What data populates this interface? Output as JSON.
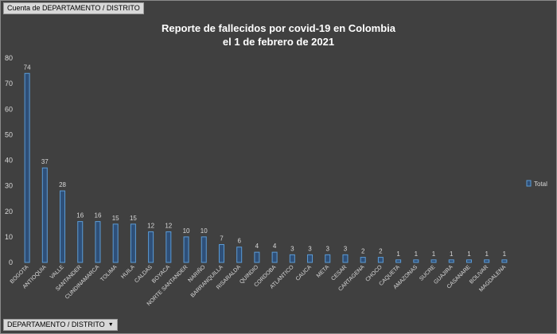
{
  "pivot": {
    "value_field": "Cuenta de DEPARTAMENTO / DISTRITO",
    "axis_field": "DEPARTAMENTO / DISTRITO"
  },
  "chart_data": {
    "type": "bar",
    "title_lines": [
      "Reporte de fallecidos por covid-19 en Colombia",
      "el 1 de febrero de 2021"
    ],
    "categories": [
      "BOGOTA",
      "ANTIOQUIA",
      "VALLE",
      "SANTANDER",
      "CUNDINAMARCA",
      "TOLIMA",
      "HUILA",
      "CALDAS",
      "BOYACA",
      "NORTE SANTANDER",
      "NARIÑO",
      "BARRANQUILLA",
      "RISARALDA",
      "QUINDIO",
      "CORDOBA",
      "ATLANTICO",
      "CAUCA",
      "META",
      "CESAR",
      "CARTAGENA",
      "CHOCO",
      "CAQUETA",
      "AMAZONAS",
      "SUCRE",
      "GUAJIRA",
      "CASANARE",
      "BOLIVAR",
      "MAGDALENA"
    ],
    "series": [
      {
        "name": "Total",
        "values": [
          74,
          37,
          28,
          16,
          16,
          15,
          15,
          12,
          12,
          10,
          10,
          7,
          6,
          4,
          4,
          3,
          3,
          3,
          3,
          2,
          2,
          1,
          1,
          1,
          1,
          1,
          1,
          1
        ]
      }
    ],
    "ylim": [
      0,
      80
    ],
    "yticks": [
      0,
      10,
      20,
      30,
      40,
      50,
      60,
      70,
      80
    ],
    "legend_position": "right",
    "grid": false,
    "colors": {
      "bar_fill": "#2e4f78",
      "bar_stroke": "#5b9bd5",
      "background": "#404040",
      "text": "#d9d9d9",
      "title": "#ffffff"
    }
  }
}
